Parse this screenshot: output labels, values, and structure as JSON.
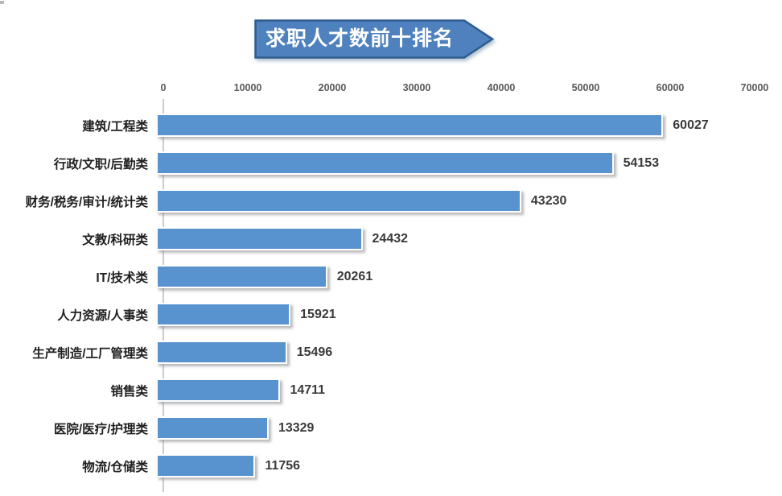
{
  "title_banner": {
    "text": "求职人才数前十排名",
    "fill_color": "#4E81BD",
    "border_color": "#2E5C8F",
    "text_color": "#FFFFFF"
  },
  "chart_data": {
    "type": "bar",
    "orientation": "horizontal",
    "title": "求职人才数前十排名",
    "categories": [
      "建筑/工程类",
      "行政/文职/后勤类",
      "财务/税务/审计/统计类",
      "文教/科研类",
      "IT/技术类",
      "人力资源/人事类",
      "生产制造/工厂管理类",
      "销售类",
      "医院/医疗/护理类",
      "物流/仓储类"
    ],
    "values": [
      60027,
      54153,
      43230,
      24432,
      20261,
      15921,
      15496,
      14711,
      13329,
      11756
    ],
    "x_ticks": [
      0,
      10000,
      20000,
      30000,
      40000,
      50000,
      60000,
      70000
    ],
    "xlim": [
      0,
      70000
    ],
    "xlabel": "",
    "ylabel": "",
    "grid": false,
    "legend": false,
    "data_labels": true,
    "bar_color": "#5893D0",
    "value_label_color": "#3A3A3A",
    "category_label_color": "#1F1F1F",
    "tick_label_color": "#595959",
    "axis_line_color": "#C8CDD2"
  }
}
